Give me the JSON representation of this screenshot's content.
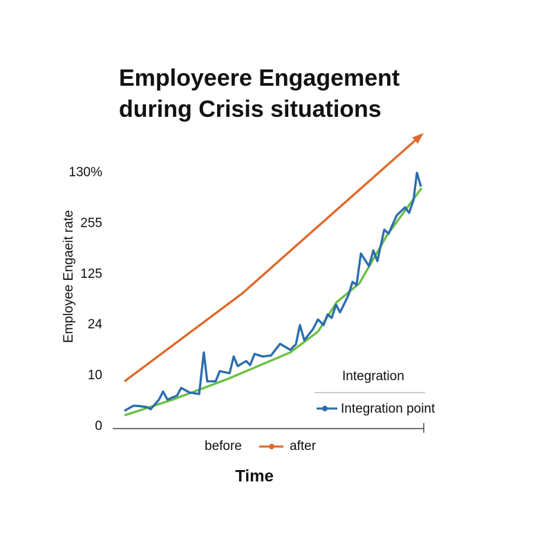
{
  "chart_data": {
    "type": "line",
    "title": [
      "Employeere Engagement",
      "during Crisis situations"
    ],
    "ylabel": "Employee Engaeit rate",
    "xlabel": "Time",
    "legend_title": "Integration",
    "xlim": [
      0,
      100
    ],
    "ylim": [
      0,
      5
    ],
    "yticks": [
      {
        "value": 0,
        "label": "0"
      },
      {
        "value": 1,
        "label": "10"
      },
      {
        "value": 2,
        "label": "24"
      },
      {
        "value": 3,
        "label": "125"
      },
      {
        "value": 4,
        "label": "255"
      },
      {
        "value": 5,
        "label": "130%"
      }
    ],
    "x_note": "before",
    "series": [
      {
        "name": "Integration point",
        "color": "#2b6cae",
        "legend": "right",
        "x": [
          3.8,
          6.7,
          8.9,
          11.1,
          12.2,
          14.9,
          16.2,
          17.6,
          20.7,
          22.0,
          24.7,
          27.8,
          29.3,
          30.4,
          33.1,
          34.4,
          37.6,
          38.9,
          40.2,
          42.9,
          44.2,
          45.6,
          48.2,
          50.9,
          53.8,
          57.1,
          58.9,
          60.2,
          61.6,
          64.4,
          66.0,
          67.8,
          69.1,
          70.4,
          71.8,
          73.1,
          75.8,
          77.1,
          78.4,
          79.8,
          82.4,
          83.8,
          85.1,
          87.3,
          88.7,
          91.3,
          94.0,
          95.3,
          96.7,
          97.8,
          99.1
        ],
        "values": [
          0.31,
          0.41,
          0.4,
          0.38,
          0.34,
          0.53,
          0.69,
          0.53,
          0.61,
          0.76,
          0.67,
          0.64,
          1.46,
          0.89,
          0.89,
          1.09,
          1.05,
          1.38,
          1.19,
          1.29,
          1.21,
          1.43,
          1.38,
          1.4,
          1.63,
          1.51,
          1.62,
          2.0,
          1.7,
          1.92,
          2.11,
          2.0,
          2.21,
          2.14,
          2.4,
          2.25,
          2.59,
          2.85,
          2.79,
          3.41,
          3.16,
          3.47,
          3.26,
          3.88,
          3.8,
          4.16,
          4.32,
          4.21,
          4.46,
          5.0,
          4.73
        ]
      },
      {
        "color": "#6abf3f",
        "x": [
          3.8,
          19.3,
          37.1,
          57.1,
          66.0,
          72.0,
          79.3,
          88.2,
          99.3
        ],
        "values": [
          0.22,
          0.53,
          0.94,
          1.46,
          1.87,
          2.45,
          2.82,
          3.77,
          4.7
        ]
      },
      {
        "name": "after",
        "color": "#e0692a",
        "legend": "bottom",
        "arrow": true,
        "x": [
          3.8,
          41.6,
          99.3
        ],
        "values": [
          0.89,
          2.62,
          5.75
        ]
      }
    ]
  }
}
